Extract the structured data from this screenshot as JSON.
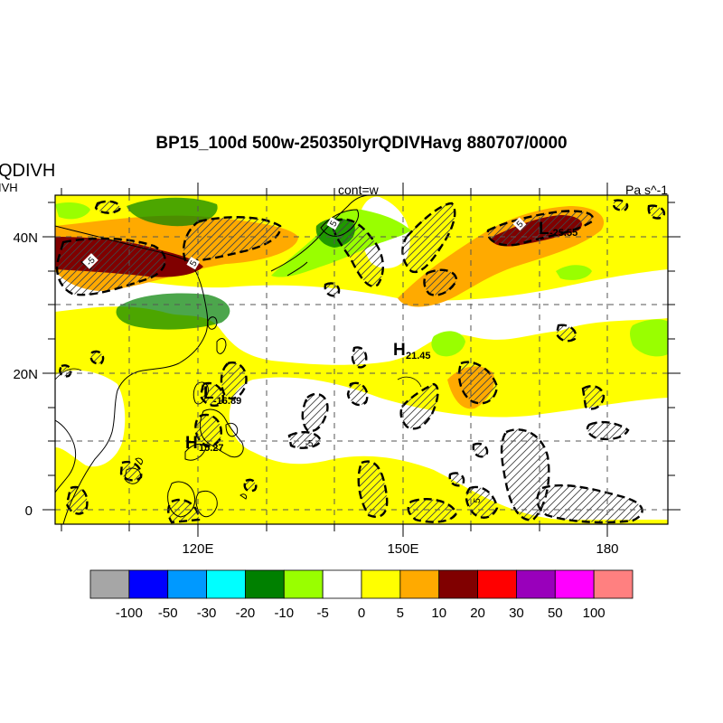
{
  "title": "BP15_100d 500w-250350lyrQDIVHavg  880707/0000",
  "left_labels": [
    "QDIVH",
    "IVH"
  ],
  "center_label": "cont=w",
  "units_label": "Pa s^-1",
  "lat_labels": [
    "40N",
    "20N",
    "0"
  ],
  "lon_labels": [
    "120E",
    "150E",
    "180"
  ],
  "extrema": [
    {
      "letter": "H",
      "value": "21.45"
    },
    {
      "letter": "H",
      "value": "15.27"
    },
    {
      "letter": "L",
      "value": "-16.89"
    },
    {
      "letter": "L",
      "value": "-25.55"
    }
  ],
  "contour_labels": [
    "-5",
    "5",
    "5",
    "5",
    "-5",
    "5"
  ],
  "colorbar": {
    "colors": [
      "#a6a6a6",
      "#0000ff",
      "#0099ff",
      "#00ffff",
      "#008000",
      "#99ff00",
      "#ffffff",
      "#ffff00",
      "#ffaa00",
      "#800000",
      "#ff0000",
      "#9900bb",
      "#ff00ff",
      "#ff8080"
    ],
    "labels": [
      "-100",
      "-50",
      "-30",
      "-20",
      "-10",
      "-5",
      "0",
      "5",
      "10",
      "20",
      "30",
      "50",
      "100"
    ]
  }
}
